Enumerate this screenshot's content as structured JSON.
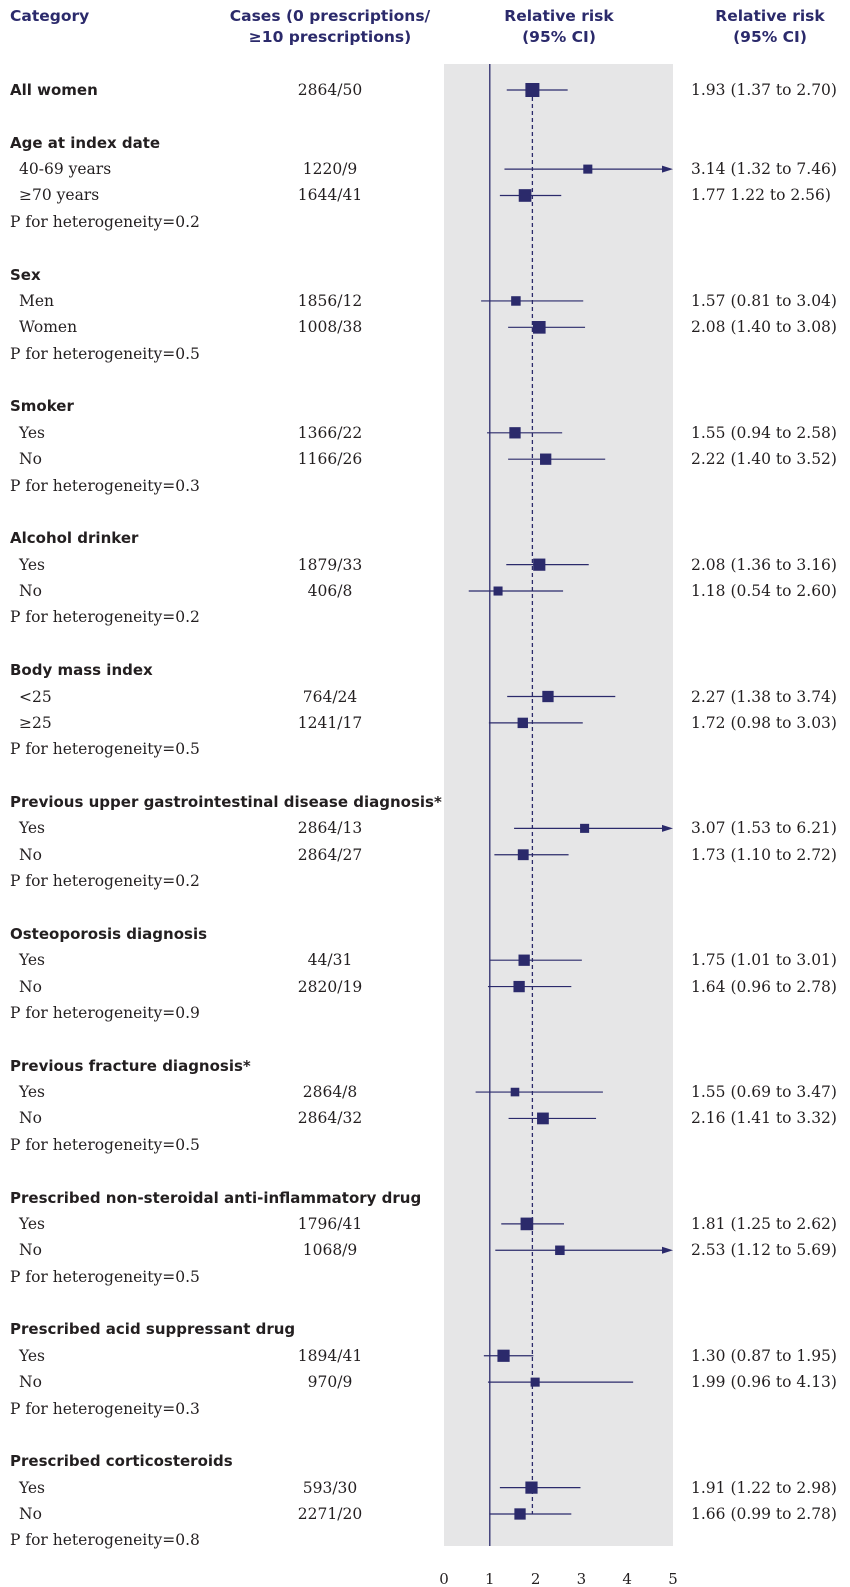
{
  "headers": {
    "category": "Category",
    "cases": [
      "Cases (0 prescriptions/",
      "≥10 prescriptions)"
    ],
    "relative_risk": [
      "Relative risk",
      "(95% CI)"
    ],
    "ci_column": [
      "Relative risk",
      "(95% CI)"
    ]
  },
  "colors": {
    "marker": "#2b2a6b",
    "panel": "#e6e6e7",
    "header": "#2b2a6b",
    "text": "#231f20"
  },
  "chart_data": {
    "type": "forest",
    "xlim": [
      0,
      5
    ],
    "xticks": [
      "0",
      "1",
      "2",
      "3",
      "4",
      "5"
    ],
    "reference_line": 1,
    "overall_line": 1.93,
    "rows": [
      {
        "kind": "overall",
        "label": "All women",
        "cases": "2864/50",
        "rr": 1.93,
        "lo": 1.37,
        "hi": 2.7,
        "text": "1.93 (1.37 to 2.70)",
        "weight": 1.0
      },
      {
        "kind": "category",
        "label": "Age at index date"
      },
      {
        "kind": "item",
        "label": "40-69 years",
        "cases": "1220/9",
        "rr": 3.14,
        "lo": 1.32,
        "hi": 7.46,
        "text": "3.14 (1.32 to 7.46)",
        "weight": 0.45
      },
      {
        "kind": "item",
        "label": "≥70 years",
        "cases": "1644/41",
        "rr": 1.77,
        "lo": 1.22,
        "hi": 2.56,
        "text": "1.77 1.22 to 2.56)",
        "weight": 0.85
      },
      {
        "kind": "pval",
        "label": "P for heterogeneity=0.2"
      },
      {
        "kind": "category",
        "label": "Sex"
      },
      {
        "kind": "item",
        "label": "Men",
        "cases": "1856/12",
        "rr": 1.57,
        "lo": 0.81,
        "hi": 3.04,
        "text": "1.57 (0.81 to 3.04)",
        "weight": 0.5
      },
      {
        "kind": "item",
        "label": "Women",
        "cases": "1008/38",
        "rr": 2.08,
        "lo": 1.4,
        "hi": 3.08,
        "text": "2.08 (1.40 to 3.08)",
        "weight": 0.85
      },
      {
        "kind": "pval",
        "label": "P for heterogeneity=0.5"
      },
      {
        "kind": "category",
        "label": "Smoker"
      },
      {
        "kind": "item",
        "label": "Yes",
        "cases": "1366/22",
        "rr": 1.55,
        "lo": 0.94,
        "hi": 2.58,
        "text": "1.55 (0.94 to 2.58)",
        "weight": 0.7
      },
      {
        "kind": "item",
        "label": "No",
        "cases": "1166/26",
        "rr": 2.22,
        "lo": 1.4,
        "hi": 3.52,
        "text": "2.22 (1.40 to 3.52)",
        "weight": 0.7
      },
      {
        "kind": "pval",
        "label": "P for heterogeneity=0.3"
      },
      {
        "kind": "category",
        "label": "Alcohol drinker"
      },
      {
        "kind": "item",
        "label": "Yes",
        "cases": "1879/33",
        "rr": 2.08,
        "lo": 1.36,
        "hi": 3.16,
        "text": "2.08 (1.36 to 3.16)",
        "weight": 0.8
      },
      {
        "kind": "item",
        "label": "No",
        "cases": "406/8",
        "rr": 1.18,
        "lo": 0.54,
        "hi": 2.6,
        "text": "1.18 (0.54 to 2.60)",
        "weight": 0.45
      },
      {
        "kind": "pval",
        "label": "P for heterogeneity=0.2"
      },
      {
        "kind": "category",
        "label": "Body mass index"
      },
      {
        "kind": "item",
        "label": "<25",
        "cases": "764/24",
        "rr": 2.27,
        "lo": 1.38,
        "hi": 3.74,
        "text": "2.27 (1.38 to 3.74)",
        "weight": 0.7
      },
      {
        "kind": "item",
        "label": "≥25",
        "cases": "1241/17",
        "rr": 1.72,
        "lo": 0.98,
        "hi": 3.03,
        "text": "1.72 (0.98 to 3.03)",
        "weight": 0.6
      },
      {
        "kind": "pval",
        "label": "P for heterogeneity=0.5"
      },
      {
        "kind": "category",
        "label": "Previous upper gastrointestinal disease diagnosis*"
      },
      {
        "kind": "item",
        "label": "Yes",
        "cases": "2864/13",
        "rr": 3.07,
        "lo": 1.53,
        "hi": 6.21,
        "text": "3.07 (1.53 to 6.21)",
        "weight": 0.45
      },
      {
        "kind": "item",
        "label": "No",
        "cases": "2864/27",
        "rr": 1.73,
        "lo": 1.1,
        "hi": 2.72,
        "text": "1.73 (1.10 to 2.72)",
        "weight": 0.65
      },
      {
        "kind": "pval",
        "label": "P for heterogeneity=0.2"
      },
      {
        "kind": "category",
        "label": "Osteoporosis diagnosis"
      },
      {
        "kind": "item",
        "label": "Yes",
        "cases": "44/31",
        "rr": 1.75,
        "lo": 1.01,
        "hi": 3.01,
        "text": "1.75 (1.01 to 3.01)",
        "weight": 0.7
      },
      {
        "kind": "item",
        "label": "No",
        "cases": "2820/19",
        "rr": 1.64,
        "lo": 0.96,
        "hi": 2.78,
        "text": "1.64 (0.96 to 2.78)",
        "weight": 0.7
      },
      {
        "kind": "pval",
        "label": "P for heterogeneity=0.9"
      },
      {
        "kind": "category",
        "label": "Previous fracture diagnosis*"
      },
      {
        "kind": "item",
        "label": "Yes",
        "cases": "2864/8",
        "rr": 1.55,
        "lo": 0.69,
        "hi": 3.47,
        "text": "1.55 (0.69 to 3.47)",
        "weight": 0.4
      },
      {
        "kind": "item",
        "label": "No",
        "cases": "2864/32",
        "rr": 2.16,
        "lo": 1.41,
        "hi": 3.32,
        "text": "2.16 (1.41 to 3.32)",
        "weight": 0.75
      },
      {
        "kind": "pval",
        "label": "P for heterogeneity=0.5"
      },
      {
        "kind": "category",
        "label": "Prescribed non-steroidal anti-inflammatory drug"
      },
      {
        "kind": "item",
        "label": "Yes",
        "cases": "1796/41",
        "rr": 1.81,
        "lo": 1.25,
        "hi": 2.62,
        "text": "1.81 (1.25 to 2.62)",
        "weight": 0.85
      },
      {
        "kind": "item",
        "label": "No",
        "cases": "1068/9",
        "rr": 2.53,
        "lo": 1.12,
        "hi": 5.69,
        "text": "2.53 (1.12 to 5.69)",
        "weight": 0.5
      },
      {
        "kind": "pval",
        "label": "P for heterogeneity=0.5"
      },
      {
        "kind": "category",
        "label": "Prescribed acid suppressant drug"
      },
      {
        "kind": "item",
        "label": "Yes",
        "cases": "1894/41",
        "rr": 1.3,
        "lo": 0.87,
        "hi": 1.95,
        "text": "1.30 (0.87 to 1.95)",
        "weight": 0.8
      },
      {
        "kind": "item",
        "label": "No",
        "cases": "970/9",
        "rr": 1.99,
        "lo": 0.96,
        "hi": 4.13,
        "text": "1.99 (0.96 to 4.13)",
        "weight": 0.45
      },
      {
        "kind": "pval",
        "label": "P for heterogeneity=0.3"
      },
      {
        "kind": "category",
        "label": "Prescribed corticosteroids"
      },
      {
        "kind": "item",
        "label": "Yes",
        "cases": "593/30",
        "rr": 1.91,
        "lo": 1.22,
        "hi": 2.98,
        "text": "1.91 (1.22 to 2.98)",
        "weight": 0.8
      },
      {
        "kind": "item",
        "label": "No",
        "cases": "2271/20",
        "rr": 1.66,
        "lo": 0.99,
        "hi": 2.78,
        "text": "1.66 (0.99 to 2.78)",
        "weight": 0.7
      },
      {
        "kind": "pval",
        "label": "P for heterogeneity=0.8"
      }
    ]
  }
}
